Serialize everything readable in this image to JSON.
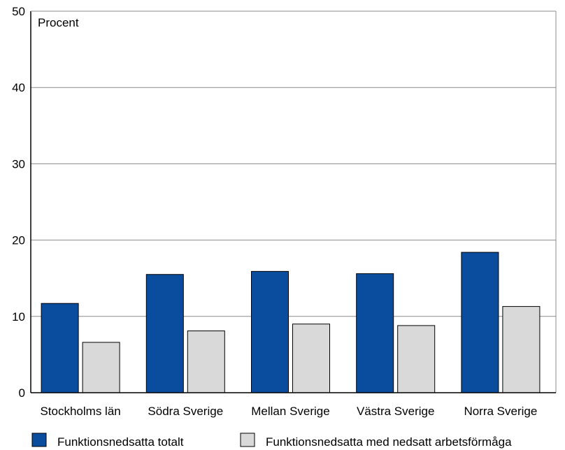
{
  "chart_data": {
    "type": "bar",
    "unit_label": "Procent",
    "ylim": [
      0,
      50
    ],
    "yticks": [
      0,
      10,
      20,
      30,
      40,
      50
    ],
    "grid": true,
    "legend_position": "bottom",
    "categories": [
      "Stockholms län",
      "Södra Sverige",
      "Mellan Sverige",
      "Västra Sverige",
      "Norra Sverige"
    ],
    "series": [
      {
        "name": "Funktionsnedsatta totalt",
        "color": "#0a4d9e",
        "values": [
          11.7,
          15.5,
          15.9,
          15.6,
          18.4
        ]
      },
      {
        "name": "Funktionsnedsatta med nedsatt arbetsförmåga",
        "color": "#d9d9da",
        "values": [
          6.6,
          8.1,
          9.0,
          8.8,
          11.3
        ]
      }
    ]
  }
}
